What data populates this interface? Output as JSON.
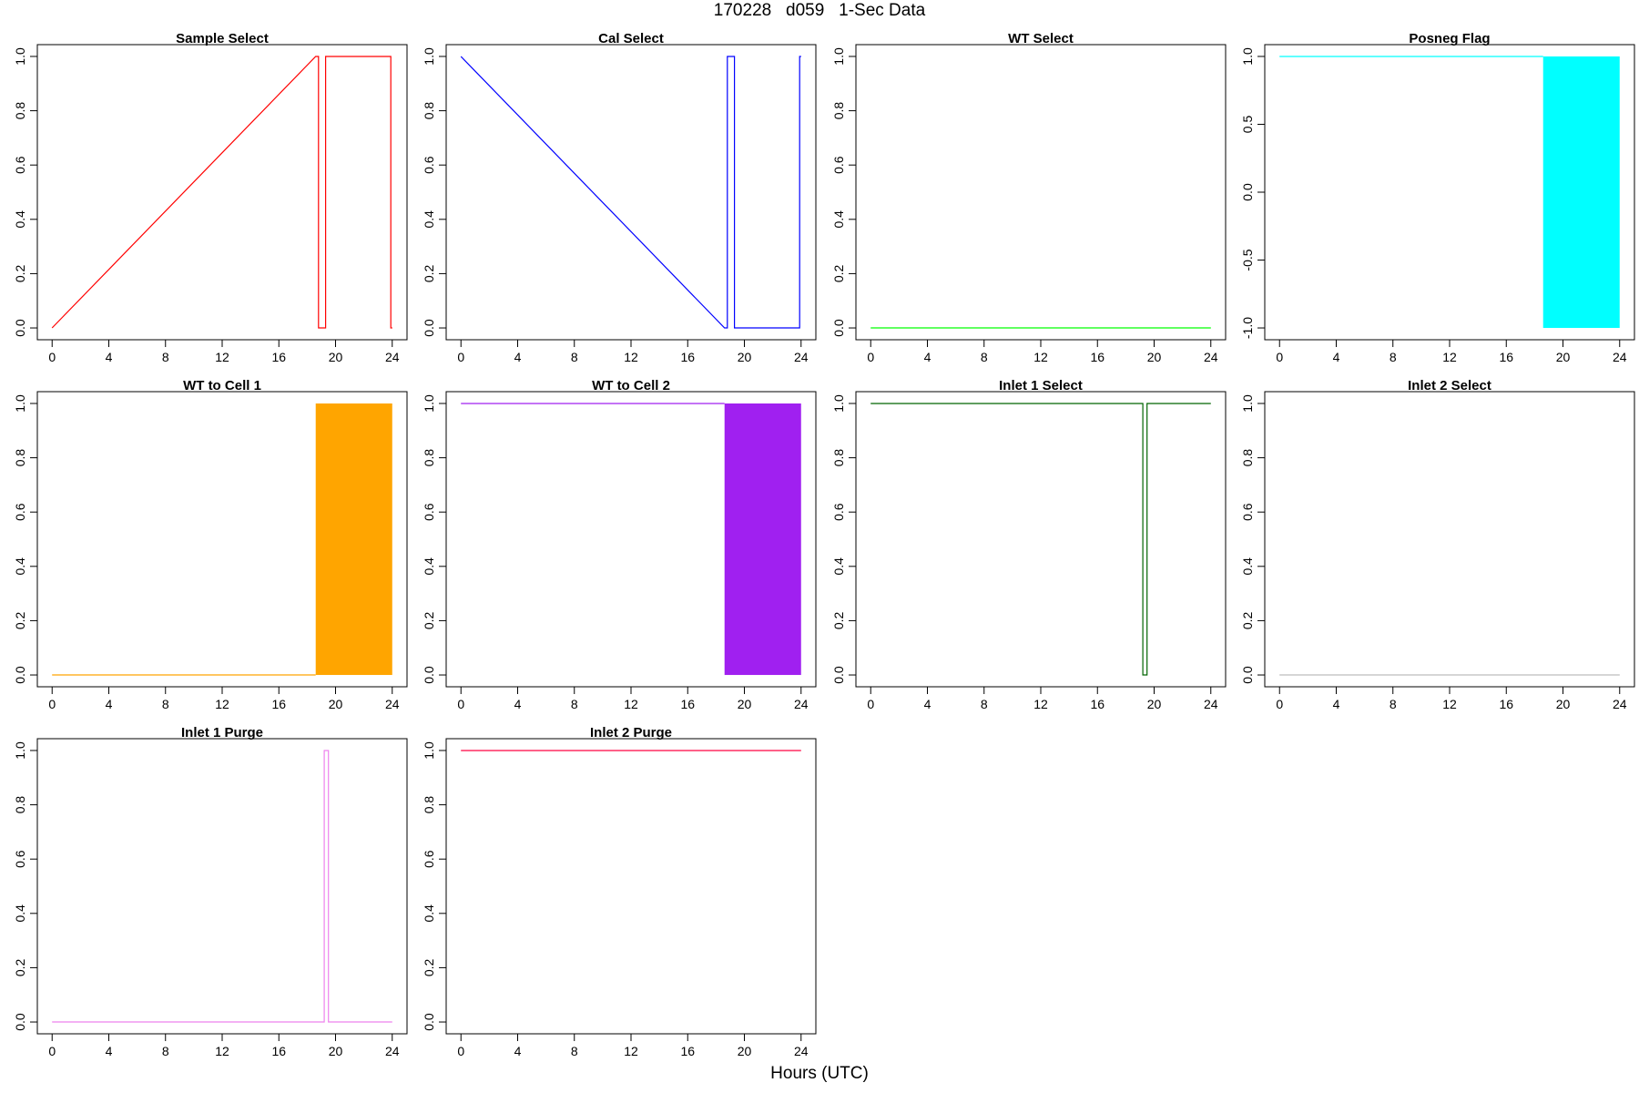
{
  "page": {
    "title": "170228   d059   1-Sec Data",
    "xlabel": "Hours (UTC)"
  },
  "chart_data": [
    {
      "type": "line",
      "title": "Sample Select",
      "color": "#ff0000",
      "xlim": [
        0,
        24
      ],
      "ylim": [
        0,
        1
      ],
      "xticks": [
        0,
        4,
        8,
        12,
        16,
        20,
        24
      ],
      "yticks": [
        "0.0",
        "0.2",
        "0.4",
        "0.6",
        "0.8",
        "1.0"
      ],
      "points": [
        [
          0,
          0
        ],
        [
          18.6,
          1
        ],
        [
          18.8,
          1
        ],
        [
          18.8,
          0
        ],
        [
          19.3,
          0
        ],
        [
          19.3,
          1
        ],
        [
          23.9,
          1
        ],
        [
          23.9,
          0
        ],
        [
          24,
          0
        ]
      ]
    },
    {
      "type": "line",
      "title": "Cal Select",
      "color": "#0000ff",
      "xlim": [
        0,
        24
      ],
      "ylim": [
        0,
        1
      ],
      "xticks": [
        0,
        4,
        8,
        12,
        16,
        20,
        24
      ],
      "yticks": [
        "0.0",
        "0.2",
        "0.4",
        "0.6",
        "0.8",
        "1.0"
      ],
      "points": [
        [
          0,
          1
        ],
        [
          18.6,
          0
        ],
        [
          18.8,
          0
        ],
        [
          18.8,
          1
        ],
        [
          19.3,
          1
        ],
        [
          19.3,
          0
        ],
        [
          23.9,
          0
        ],
        [
          23.9,
          1
        ],
        [
          24,
          1
        ]
      ]
    },
    {
      "type": "line",
      "title": "WT Select",
      "color": "#00ff00",
      "xlim": [
        0,
        24
      ],
      "ylim": [
        0,
        1
      ],
      "xticks": [
        0,
        4,
        8,
        12,
        16,
        20,
        24
      ],
      "yticks": [
        "0.0",
        "0.2",
        "0.4",
        "0.6",
        "0.8",
        "1.0"
      ],
      "points": [
        [
          0,
          0
        ],
        [
          24,
          0
        ]
      ]
    },
    {
      "type": "area",
      "title": "Posneg Flag",
      "color": "#00ffff",
      "xlim": [
        0,
        24
      ],
      "ylim": [
        -1,
        1
      ],
      "xticks": [
        0,
        4,
        8,
        12,
        16,
        20,
        24
      ],
      "yticks": [
        "-1.0",
        "-0.5",
        "0.0",
        "0.5",
        "1.0"
      ],
      "points": [
        [
          0,
          1
        ],
        [
          18.6,
          1
        ]
      ],
      "filled_range": {
        "x": [
          18.6,
          24
        ],
        "y": [
          -1,
          1
        ]
      }
    },
    {
      "type": "area",
      "title": "WT to Cell 1",
      "color": "#ffa500",
      "xlim": [
        0,
        24
      ],
      "ylim": [
        0,
        1
      ],
      "xticks": [
        0,
        4,
        8,
        12,
        16,
        20,
        24
      ],
      "yticks": [
        "0.0",
        "0.2",
        "0.4",
        "0.6",
        "0.8",
        "1.0"
      ],
      "points": [
        [
          0,
          0
        ],
        [
          18.6,
          0
        ]
      ],
      "filled_range": {
        "x": [
          18.6,
          24
        ],
        "y": [
          0,
          1
        ]
      }
    },
    {
      "type": "area",
      "title": "WT to Cell 2",
      "color": "#a020f0",
      "xlim": [
        0,
        24
      ],
      "ylim": [
        0,
        1
      ],
      "xticks": [
        0,
        4,
        8,
        12,
        16,
        20,
        24
      ],
      "yticks": [
        "0.0",
        "0.2",
        "0.4",
        "0.6",
        "0.8",
        "1.0"
      ],
      "points": [
        [
          0,
          1
        ],
        [
          18.6,
          1
        ]
      ],
      "filled_range": {
        "x": [
          18.6,
          24
        ],
        "y": [
          0,
          1
        ]
      }
    },
    {
      "type": "line",
      "title": "Inlet 1 Select",
      "color": "#006400",
      "xlim": [
        0,
        24
      ],
      "ylim": [
        0,
        1
      ],
      "xticks": [
        0,
        4,
        8,
        12,
        16,
        20,
        24
      ],
      "yticks": [
        "0.0",
        "0.2",
        "0.4",
        "0.6",
        "0.8",
        "1.0"
      ],
      "points": [
        [
          0,
          1
        ],
        [
          19.2,
          1
        ],
        [
          19.2,
          0
        ],
        [
          19.5,
          0
        ],
        [
          19.5,
          1
        ],
        [
          24,
          1
        ]
      ]
    },
    {
      "type": "line",
      "title": "Inlet 2 Select",
      "color": "#bebebe",
      "xlim": [
        0,
        24
      ],
      "ylim": [
        0,
        1
      ],
      "xticks": [
        0,
        4,
        8,
        12,
        16,
        20,
        24
      ],
      "yticks": [
        "0.0",
        "0.2",
        "0.4",
        "0.6",
        "0.8",
        "1.0"
      ],
      "points": [
        [
          0,
          0
        ],
        [
          24,
          0
        ]
      ]
    },
    {
      "type": "line",
      "title": "Inlet 1 Purge",
      "color": "#ee82ee",
      "xlim": [
        0,
        24
      ],
      "ylim": [
        0,
        1
      ],
      "xticks": [
        0,
        4,
        8,
        12,
        16,
        20,
        24
      ],
      "yticks": [
        "0.0",
        "0.2",
        "0.4",
        "0.6",
        "0.8",
        "1.0"
      ],
      "points": [
        [
          0,
          0
        ],
        [
          19.2,
          0
        ],
        [
          19.2,
          1
        ],
        [
          19.5,
          1
        ],
        [
          19.5,
          0
        ],
        [
          24,
          0
        ]
      ]
    },
    {
      "type": "line",
      "title": "Inlet 2 Purge",
      "color": "#ff0040",
      "xlim": [
        0,
        24
      ],
      "ylim": [
        0,
        1
      ],
      "xticks": [
        0,
        4,
        8,
        12,
        16,
        20,
        24
      ],
      "yticks": [
        "0.0",
        "0.2",
        "0.4",
        "0.6",
        "0.8",
        "1.0"
      ],
      "points": [
        [
          0,
          1
        ],
        [
          24,
          1
        ]
      ]
    }
  ]
}
